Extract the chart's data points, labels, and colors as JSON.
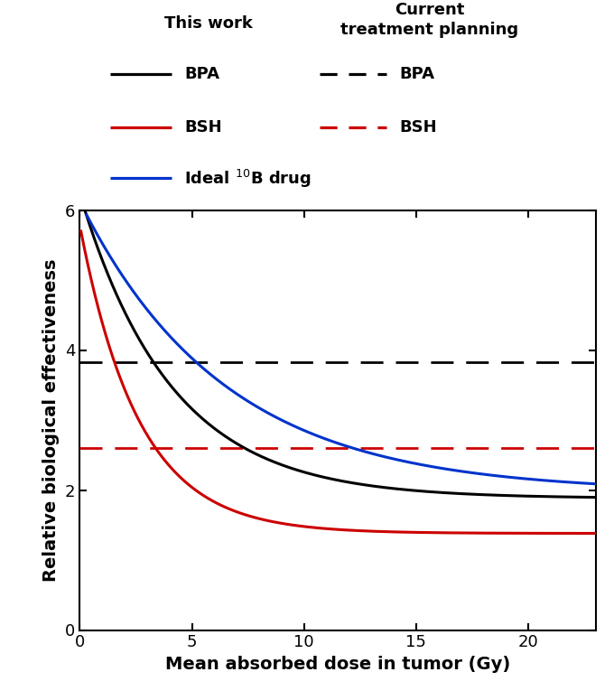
{
  "xlim": [
    0,
    23
  ],
  "ylim": [
    0,
    6
  ],
  "xticks": [
    0,
    5,
    10,
    15,
    20
  ],
  "yticks": [
    0,
    2,
    4,
    6
  ],
  "xlabel": "Mean absorbed dose in tumor (Gy)",
  "ylabel": "Relative biological effectiveness",
  "bpa_a": 1.88,
  "bpa_b": 4.35,
  "bpa_c": 0.245,
  "bsh_a": 1.38,
  "bsh_b": 4.4,
  "bsh_c": 0.38,
  "ideal_a": 1.97,
  "ideal_b": 4.15,
  "ideal_c": 0.155,
  "bpa_hline": 3.82,
  "bsh_hline": 2.6,
  "bpa_color": "#000000",
  "bsh_color": "#cc0000",
  "ideal_color": "#0033cc",
  "lw_curve": 2.2,
  "lw_hline": 2.0,
  "fontsize_title": 14,
  "fontsize_label": 14,
  "fontsize_tick": 13,
  "fontsize_legend": 13
}
